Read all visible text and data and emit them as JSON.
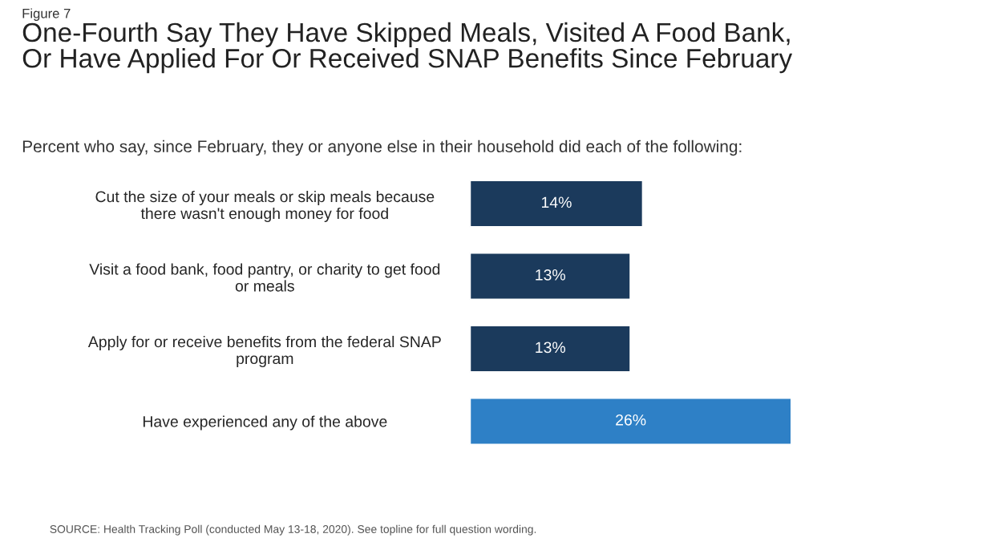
{
  "chart_data": {
    "type": "bar",
    "orientation": "horizontal",
    "title": "One-Fourth Say They Have Skipped Meals, Visited A Food Bank,\nOr Have Applied For Or Received SNAP Benefits Since February",
    "subtitle": "Percent who say, since February, they or anyone else in their household did each of the following:",
    "categories": [
      "Cut the size of your meals or skip meals because\nthere wasn't enough money for food",
      "Visit a food bank, food pantry, or charity to get food\nor meals",
      "Apply for or receive benefits from the federal SNAP\nprogram",
      "Have experienced any of the above"
    ],
    "values": [
      14,
      13,
      13,
      26
    ],
    "value_labels": [
      "14%",
      "13%",
      "13%",
      "26%"
    ],
    "colors": [
      "#1b3a5c",
      "#1b3a5c",
      "#1b3a5c",
      "#2e80c6"
    ],
    "annotations": [
      "Figure 7",
      "SOURCE: Health Tracking Poll (conducted May 13-18, 2020). See topline for full question wording."
    ]
  }
}
